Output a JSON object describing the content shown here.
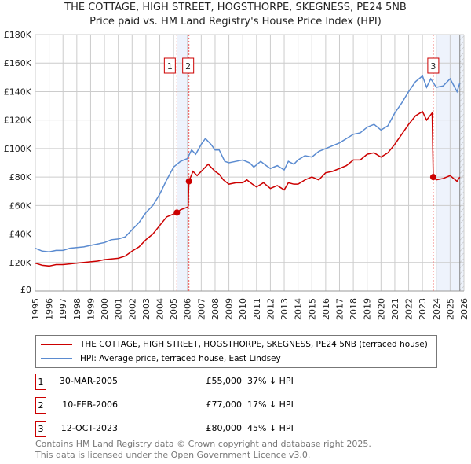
{
  "chart_data": {
    "type": "line",
    "title": "THE COTTAGE, HIGH STREET, HOGSTHORPE, SKEGNESS, PE24 5NB",
    "subtitle": "Price paid vs. HM Land Registry's House Price Index (HPI)",
    "xlim": [
      1995,
      2026
    ],
    "ylim": [
      0,
      180000
    ],
    "yticks": [
      0,
      20000,
      40000,
      60000,
      80000,
      100000,
      120000,
      140000,
      160000,
      180000
    ],
    "ytick_labels": [
      "£0",
      "£20K",
      "£40K",
      "£60K",
      "£80K",
      "£100K",
      "£120K",
      "£140K",
      "£160K",
      "£180K"
    ],
    "xticks": [
      1995,
      1996,
      1997,
      1998,
      1999,
      2000,
      2001,
      2002,
      2003,
      2004,
      2005,
      2006,
      2007,
      2008,
      2009,
      2010,
      2011,
      2012,
      2013,
      2014,
      2015,
      2016,
      2017,
      2018,
      2019,
      2020,
      2021,
      2022,
      2023,
      2024,
      2025,
      2026
    ],
    "grid": true,
    "series": [
      {
        "name": "THE COTTAGE, HIGH STREET, HOGSTHORPE, SKEGNESS, PE24 5NB (terraced house)",
        "color": "#cc0000",
        "x": [
          1995,
          1995.5,
          1996,
          1996.5,
          1997,
          1997.5,
          1998,
          1998.5,
          1999,
          1999.5,
          2000,
          2000.5,
          2001,
          2001.5,
          2002,
          2002.5,
          2003,
          2003.5,
          2004,
          2004.5,
          2005,
          2005.24,
          2005.5,
          2006.05,
          2006.11,
          2006.4,
          2006.7,
          2007,
          2007.5,
          2008,
          2008.3,
          2008.6,
          2009,
          2009.5,
          2010,
          2010.3,
          2010.7,
          2011,
          2011.5,
          2012,
          2012.5,
          2013,
          2013.3,
          2013.7,
          2014,
          2014.5,
          2015,
          2015.5,
          2016,
          2016.5,
          2017,
          2017.5,
          2018,
          2018.5,
          2019,
          2019.5,
          2020,
          2020.5,
          2021,
          2021.5,
          2022,
          2022.5,
          2023,
          2023.3,
          2023.7,
          2023.78,
          2024,
          2024.5,
          2025,
          2025.5,
          2025.7
        ],
        "y": [
          19500,
          18000,
          17500,
          18500,
          18500,
          19000,
          19500,
          20000,
          20500,
          21000,
          22000,
          22500,
          23000,
          24500,
          28000,
          31000,
          36000,
          40000,
          46000,
          52000,
          54000,
          55000,
          57000,
          59000,
          77000,
          84000,
          81000,
          84000,
          89000,
          84000,
          82000,
          78000,
          75000,
          76000,
          76000,
          78000,
          75000,
          73000,
          76000,
          72000,
          74000,
          71000,
          76000,
          75000,
          75000,
          78000,
          80000,
          78000,
          83000,
          84000,
          86000,
          88000,
          92000,
          92000,
          96000,
          97000,
          94000,
          97000,
          103000,
          110000,
          117000,
          123000,
          126000,
          120000,
          125000,
          80000,
          78000,
          79000,
          81000,
          77000,
          80000
        ]
      },
      {
        "name": "HPI: Average price, terraced house, East Lindsey",
        "color": "#5b8bd0",
        "x": [
          1995,
          1995.5,
          1996,
          1996.5,
          1997,
          1997.5,
          1998,
          1998.5,
          1999,
          1999.5,
          2000,
          2000.5,
          2001,
          2001.5,
          2002,
          2002.5,
          2003,
          2003.5,
          2004,
          2004.5,
          2005,
          2005.25,
          2005.5,
          2006,
          2006.3,
          2006.6,
          2007,
          2007.3,
          2007.7,
          2008,
          2008.3,
          2008.7,
          2009,
          2009.5,
          2010,
          2010.5,
          2010.8,
          2011.3,
          2011.7,
          2012,
          2012.5,
          2013,
          2013.3,
          2013.7,
          2014,
          2014.5,
          2015,
          2015.5,
          2016,
          2016.5,
          2017,
          2017.5,
          2018,
          2018.5,
          2019,
          2019.5,
          2020,
          2020.5,
          2021,
          2021.5,
          2022,
          2022.5,
          2023,
          2023.3,
          2023.6,
          2024,
          2024.5,
          2025,
          2025.5,
          2025.7
        ],
        "y": [
          30000,
          28000,
          27500,
          28500,
          28500,
          30000,
          30500,
          31000,
          32000,
          33000,
          34000,
          36000,
          36500,
          38000,
          43000,
          48000,
          55000,
          60000,
          68000,
          78000,
          87000,
          89000,
          91000,
          93000,
          99000,
          96000,
          103000,
          107000,
          103000,
          99000,
          99000,
          91000,
          90000,
          91000,
          92000,
          90000,
          87000,
          91000,
          88000,
          86000,
          88000,
          85000,
          91000,
          89000,
          92000,
          95000,
          94000,
          98000,
          100000,
          102000,
          104000,
          107000,
          110000,
          111000,
          115000,
          117000,
          113000,
          116000,
          125000,
          132000,
          140000,
          147000,
          151000,
          143000,
          149000,
          143000,
          144000,
          149000,
          140000,
          146000
        ]
      }
    ],
    "shaded_regions": [
      [
        2005.24,
        2006.11
      ],
      [
        2024.0,
        2026
      ]
    ],
    "hatched_region": [
      2025.7,
      2026
    ],
    "markers": [
      {
        "label": "1",
        "x": 2005.24,
        "y": 55000
      },
      {
        "label": "2",
        "x": 2006.11,
        "y": 77000
      },
      {
        "label": "3",
        "x": 2023.78,
        "y": 80000
      }
    ],
    "legend": "below"
  },
  "transactions": [
    {
      "num": "1",
      "date": "30-MAR-2005",
      "price": "£55,000",
      "hpi": "37% ↓ HPI"
    },
    {
      "num": "2",
      "date": "10-FEB-2006",
      "price": "£77,000",
      "hpi": "17% ↓ HPI"
    },
    {
      "num": "3",
      "date": "12-OCT-2023",
      "price": "£80,000",
      "hpi": "45% ↓ HPI"
    }
  ],
  "footer": {
    "line1": "Contains HM Land Registry data © Crown copyright and database right 2025.",
    "line2": "This data is licensed under the Open Government Licence v3.0."
  }
}
